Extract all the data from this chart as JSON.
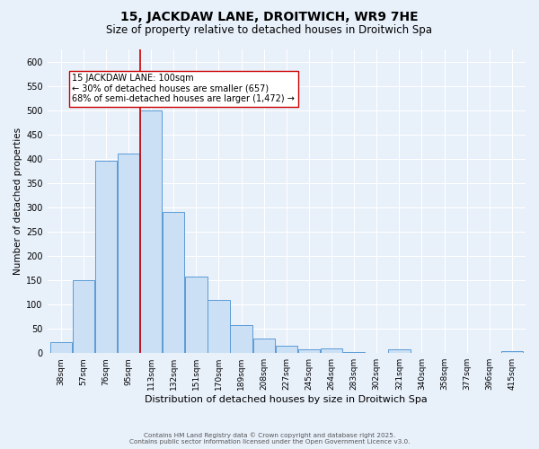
{
  "title": "15, JACKDAW LANE, DROITWICH, WR9 7HE",
  "subtitle": "Size of property relative to detached houses in Droitwich Spa",
  "xlabel": "Distribution of detached houses by size in Droitwich Spa",
  "ylabel": "Number of detached properties",
  "bar_labels": [
    "38sqm",
    "57sqm",
    "76sqm",
    "95sqm",
    "113sqm",
    "132sqm",
    "151sqm",
    "170sqm",
    "189sqm",
    "208sqm",
    "227sqm",
    "245sqm",
    "264sqm",
    "283sqm",
    "302sqm",
    "321sqm",
    "340sqm",
    "358sqm",
    "377sqm",
    "396sqm",
    "415sqm"
  ],
  "bar_values": [
    22,
    150,
    395,
    410,
    500,
    290,
    157,
    110,
    57,
    30,
    16,
    8,
    10,
    3,
    0,
    8,
    0,
    0,
    0,
    0,
    5
  ],
  "bar_color": "#cce0f5",
  "bar_edge_color": "#5b9bd5",
  "vline_color": "#cc0000",
  "annotation_title": "15 JACKDAW LANE: 100sqm",
  "annotation_line1": "← 30% of detached houses are smaller (657)",
  "annotation_line2": "68% of semi-detached houses are larger (1,472) →",
  "annotation_box_facecolor": "#ffffff",
  "annotation_box_edgecolor": "#cc0000",
  "ylim": [
    0,
    625
  ],
  "yticks": [
    0,
    50,
    100,
    150,
    200,
    250,
    300,
    350,
    400,
    450,
    500,
    550,
    600
  ],
  "bg_color": "#e8f0fa",
  "plot_bg_color": "#e8f0fa",
  "footer1": "Contains HM Land Registry data © Crown copyright and database right 2025.",
  "footer2": "Contains public sector information licensed under the Open Government Licence v3.0.",
  "grid_color": "#ffffff",
  "title_fontsize": 10,
  "subtitle_fontsize": 8.5,
  "ylabel_fontsize": 7.5,
  "xlabel_fontsize": 8,
  "tick_fontsize": 6.5,
  "ytick_fontsize": 7,
  "annotation_fontsize": 7,
  "bar_width": 0.97
}
